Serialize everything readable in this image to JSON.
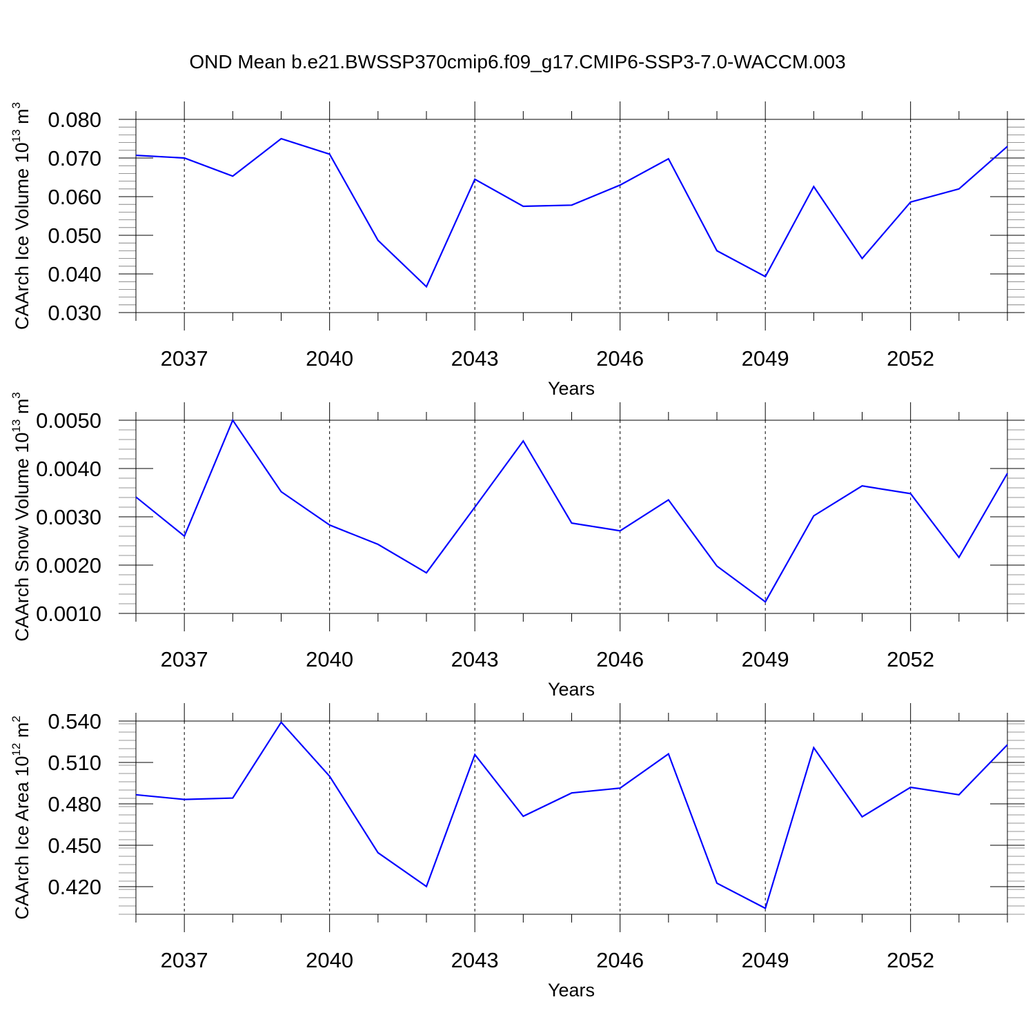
{
  "title": "OND Mean b.e21.BWSSP370cmip6.f09_g17.CMIP6-SSP3-7.0-WACCM.003",
  "chart_data": [
    {
      "type": "line",
      "title": "OND Mean b.e21.BWSSP370cmip6.f09_g17.CMIP6-SSP3-7.0-WACCM.003",
      "ylabel_base": "CAArch Ice Volume 10",
      "ylabel_exp": "13",
      "ylabel_unit": " m",
      "ylabel_unit_exp": "3",
      "xlabel": "Years",
      "line_color": "#0000ff",
      "xlim": [
        2036,
        2054
      ],
      "ylim": [
        0.03,
        0.08
      ],
      "xticks": [
        2037,
        2040,
        2043,
        2046,
        2049,
        2052
      ],
      "xtick_labels": [
        "2037",
        "2040",
        "2043",
        "2046",
        "2049",
        "2052"
      ],
      "yticks": [
        0.03,
        0.04,
        0.05,
        0.06,
        0.07,
        0.08
      ],
      "ytick_labels": [
        "0.030",
        "0.040",
        "0.050",
        "0.060",
        "0.070",
        "0.080"
      ],
      "x": [
        2036,
        2037,
        2038,
        2039,
        2040,
        2041,
        2042,
        2043,
        2044,
        2045,
        2046,
        2047,
        2048,
        2049,
        2050,
        2051,
        2052,
        2053,
        2054
      ],
      "values": [
        0.0707,
        0.07,
        0.0653,
        0.075,
        0.071,
        0.0487,
        0.0367,
        0.0645,
        0.0575,
        0.0578,
        0.063,
        0.0698,
        0.046,
        0.0393,
        0.0626,
        0.044,
        0.0586,
        0.062,
        0.073
      ]
    },
    {
      "type": "line",
      "ylabel_base": "CAArch Snow Volume 10",
      "ylabel_exp": "13",
      "ylabel_unit": " m",
      "ylabel_unit_exp": "3",
      "xlabel": "Years",
      "line_color": "#0000ff",
      "xlim": [
        2036,
        2054
      ],
      "ylim": [
        0.001,
        0.005
      ],
      "xticks": [
        2037,
        2040,
        2043,
        2046,
        2049,
        2052
      ],
      "xtick_labels": [
        "2037",
        "2040",
        "2043",
        "2046",
        "2049",
        "2052"
      ],
      "yticks": [
        0.001,
        0.002,
        0.003,
        0.004,
        0.005
      ],
      "ytick_labels": [
        "0.0010",
        "0.0020",
        "0.0030",
        "0.0040",
        "0.0050"
      ],
      "x": [
        2036,
        2037,
        2038,
        2039,
        2040,
        2041,
        2042,
        2043,
        2044,
        2045,
        2046,
        2047,
        2048,
        2049,
        2050,
        2051,
        2052,
        2053,
        2054
      ],
      "values": [
        0.00341,
        0.0026,
        0.005,
        0.00352,
        0.00283,
        0.00243,
        0.00184,
        0.0032,
        0.00457,
        0.00287,
        0.00271,
        0.00335,
        0.00198,
        0.00124,
        0.00302,
        0.00364,
        0.00348,
        0.00216,
        0.0039
      ]
    },
    {
      "type": "line",
      "ylabel_base": "CAArch Ice Area 10",
      "ylabel_exp": "12",
      "ylabel_unit": " m",
      "ylabel_unit_exp": "2",
      "xlabel": "Years",
      "line_color": "#0000ff",
      "xlim": [
        2036,
        2054
      ],
      "ylim": [
        0.4,
        0.54
      ],
      "xticks": [
        2037,
        2040,
        2043,
        2046,
        2049,
        2052
      ],
      "xtick_labels": [
        "2037",
        "2040",
        "2043",
        "2046",
        "2049",
        "2052"
      ],
      "yticks": [
        0.42,
        0.45,
        0.48,
        0.51,
        0.54
      ],
      "ytick_labels": [
        "0.420",
        "0.450",
        "0.480",
        "0.510",
        "0.540"
      ],
      "x": [
        2036,
        2037,
        2038,
        2039,
        2040,
        2041,
        2042,
        2043,
        2044,
        2045,
        2046,
        2047,
        2048,
        2049,
        2050,
        2051,
        2052,
        2053,
        2054
      ],
      "values": [
        0.4866,
        0.4832,
        0.4842,
        0.5391,
        0.5,
        0.4446,
        0.4201,
        0.5157,
        0.471,
        0.4879,
        0.4914,
        0.5162,
        0.4225,
        0.4043,
        0.5207,
        0.4706,
        0.492,
        0.4866,
        0.5228
      ]
    }
  ]
}
